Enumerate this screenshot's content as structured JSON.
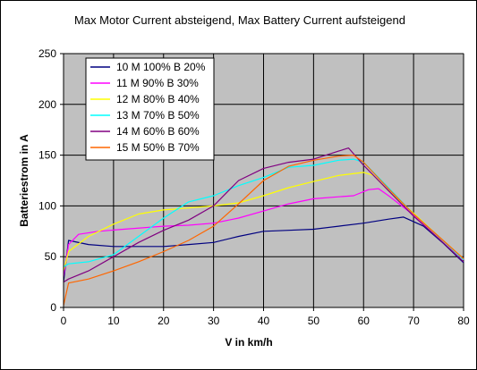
{
  "chart_data": {
    "type": "line",
    "title": "Max Motor Current absteigend, Max Battery Current aufsteigend",
    "xlabel": "V in km/h",
    "ylabel": "Batteriestrom in A",
    "xlim": [
      0,
      80
    ],
    "ylim": [
      0,
      250
    ],
    "x_ticks": [
      0,
      10,
      20,
      30,
      40,
      50,
      60,
      70,
      80
    ],
    "y_ticks": [
      0,
      50,
      100,
      150,
      200,
      250
    ],
    "grid": true,
    "plot_background": "#c0c0c0",
    "legend_position": "top-left",
    "series": [
      {
        "name": "10 M 100% B 20%",
        "color": "#000080",
        "points": [
          [
            0,
            25
          ],
          [
            1,
            66
          ],
          [
            5,
            62
          ],
          [
            10,
            60
          ],
          [
            15,
            60
          ],
          [
            20,
            60
          ],
          [
            25,
            62
          ],
          [
            30,
            64
          ],
          [
            35,
            70
          ],
          [
            40,
            75
          ],
          [
            45,
            76
          ],
          [
            50,
            77
          ],
          [
            55,
            80
          ],
          [
            60,
            83
          ],
          [
            65,
            87
          ],
          [
            68,
            89
          ],
          [
            72,
            80
          ],
          [
            76,
            63
          ],
          [
            80,
            44
          ]
        ]
      },
      {
        "name": "11 M 90% B 30%",
        "color": "#ff00ff",
        "points": [
          [
            0,
            30
          ],
          [
            1,
            62
          ],
          [
            3,
            72
          ],
          [
            7,
            75
          ],
          [
            12,
            77
          ],
          [
            20,
            80
          ],
          [
            25,
            81
          ],
          [
            30,
            83
          ],
          [
            35,
            88
          ],
          [
            40,
            95
          ],
          [
            45,
            102
          ],
          [
            50,
            107
          ],
          [
            55,
            109
          ],
          [
            58,
            110
          ],
          [
            61,
            116
          ],
          [
            63,
            117
          ],
          [
            65,
            110
          ],
          [
            70,
            91
          ],
          [
            75,
            70
          ],
          [
            80,
            47
          ]
        ]
      },
      {
        "name": "12 M 80% B 40%",
        "color": "#ffff00",
        "points": [
          [
            0,
            36
          ],
          [
            1,
            55
          ],
          [
            5,
            70
          ],
          [
            10,
            82
          ],
          [
            15,
            92
          ],
          [
            20,
            96
          ],
          [
            25,
            98
          ],
          [
            30,
            100
          ],
          [
            35,
            103
          ],
          [
            40,
            110
          ],
          [
            45,
            118
          ],
          [
            50,
            124
          ],
          [
            55,
            130
          ],
          [
            60,
            133
          ],
          [
            62,
            130
          ],
          [
            65,
            115
          ],
          [
            70,
            93
          ],
          [
            75,
            70
          ],
          [
            80,
            48
          ]
        ]
      },
      {
        "name": "13 M 70% B 50%",
        "color": "#00ffff",
        "points": [
          [
            0,
            40
          ],
          [
            1,
            43
          ],
          [
            5,
            45
          ],
          [
            10,
            52
          ],
          [
            15,
            70
          ],
          [
            20,
            88
          ],
          [
            25,
            104
          ],
          [
            30,
            110
          ],
          [
            35,
            120
          ],
          [
            40,
            128
          ],
          [
            45,
            138
          ],
          [
            50,
            140
          ],
          [
            55,
            145
          ],
          [
            58,
            146
          ],
          [
            60,
            143
          ],
          [
            65,
            118
          ],
          [
            70,
            92
          ],
          [
            75,
            70
          ],
          [
            80,
            47
          ]
        ]
      },
      {
        "name": "14 M 60% B 60%",
        "color": "#800080",
        "points": [
          [
            0,
            25
          ],
          [
            1,
            28
          ],
          [
            5,
            36
          ],
          [
            10,
            50
          ],
          [
            15,
            64
          ],
          [
            20,
            76
          ],
          [
            25,
            86
          ],
          [
            30,
            100
          ],
          [
            35,
            125
          ],
          [
            40,
            137
          ],
          [
            45,
            143
          ],
          [
            50,
            146
          ],
          [
            55,
            154
          ],
          [
            57,
            157
          ],
          [
            60,
            140
          ],
          [
            65,
            115
          ],
          [
            70,
            90
          ],
          [
            75,
            68
          ],
          [
            80,
            45
          ]
        ]
      },
      {
        "name": "15 M 50% B 70%",
        "color": "#ff6600",
        "points": [
          [
            0,
            2
          ],
          [
            1,
            24
          ],
          [
            5,
            28
          ],
          [
            10,
            36
          ],
          [
            15,
            45
          ],
          [
            20,
            55
          ],
          [
            25,
            66
          ],
          [
            30,
            80
          ],
          [
            35,
            102
          ],
          [
            40,
            125
          ],
          [
            45,
            139
          ],
          [
            50,
            145
          ],
          [
            55,
            149
          ],
          [
            58,
            150
          ],
          [
            60,
            143
          ],
          [
            65,
            117
          ],
          [
            70,
            92
          ],
          [
            75,
            70
          ],
          [
            80,
            48
          ]
        ]
      }
    ]
  }
}
